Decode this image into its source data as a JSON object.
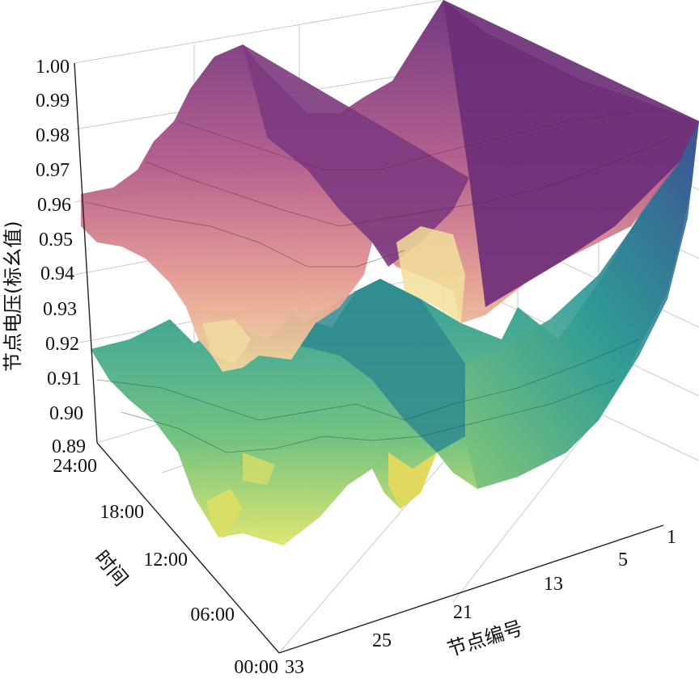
{
  "chart_data": {
    "type": "surface-3d",
    "title": "",
    "zlabel": "节点电压(标幺值)",
    "xlabel": "节点编号",
    "ylabel": "时间",
    "zlim": [
      0.89,
      1.0
    ],
    "z_ticks": [
      "1.00",
      "0.99",
      "0.98",
      "0.97",
      "0.96",
      "0.95",
      "0.94",
      "0.93",
      "0.92",
      "0.91",
      "0.90",
      "0.89"
    ],
    "node_ticks": [
      "1",
      "5",
      "13",
      "21",
      "25",
      "33"
    ],
    "time_ticks": [
      "24:00",
      "18:00",
      "12:00",
      "06:00",
      "00:00"
    ],
    "grid": true,
    "surfaces": [
      {
        "colormap": "magma-like",
        "colors": [
          "#6a2f7a",
          "#b45a8a",
          "#e49a92",
          "#f1d89c"
        ],
        "z_range_approx": [
          0.925,
          1.0
        ]
      },
      {
        "colormap": "viridis-like",
        "colors": [
          "#3a5a9a",
          "#2e9c96",
          "#6cc07a",
          "#dfe56a"
        ],
        "z_range_approx": [
          0.89,
          0.975
        ]
      }
    ]
  }
}
